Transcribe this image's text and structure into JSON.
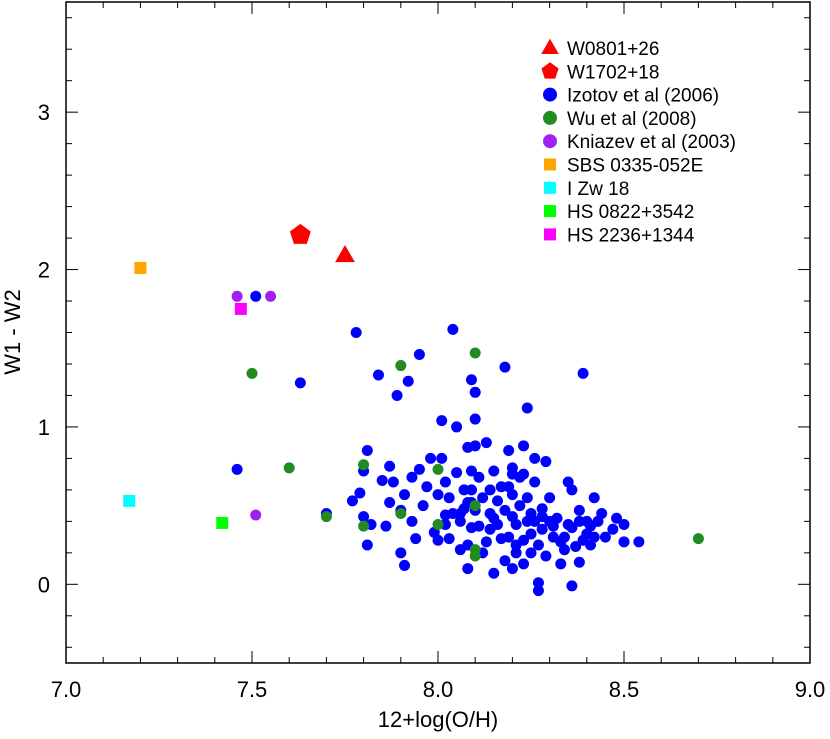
{
  "chart_data": {
    "type": "scatter",
    "title": "",
    "xlabel": "12+log(O/H)",
    "ylabel": "W1 - W2",
    "xlim": [
      7.0,
      9.0
    ],
    "ylim": [
      -0.5,
      3.7
    ],
    "xticks": [
      7.0,
      7.5,
      8.0,
      8.5,
      9.0
    ],
    "xtick_labels": [
      "7.0",
      "7.5",
      "8.0",
      "8.5",
      "9.0"
    ],
    "yticks": [
      0,
      1,
      2,
      3
    ],
    "ytick_labels": [
      "0",
      "1",
      "2",
      "3"
    ],
    "legend_position": "top-right",
    "series": [
      {
        "name": "W0801+26",
        "color": "#ff0000",
        "marker": "triangle",
        "points": [
          [
            7.75,
            2.09
          ]
        ]
      },
      {
        "name": "W1702+18",
        "color": "#ff0000",
        "marker": "pentagon",
        "points": [
          [
            7.63,
            2.22
          ]
        ]
      },
      {
        "name": "Izotov et al (2006)",
        "color": "#0000ff",
        "marker": "circle",
        "points": [
          [
            7.46,
            0.73
          ],
          [
            7.51,
            1.83
          ],
          [
            7.63,
            1.28
          ],
          [
            7.7,
            0.45
          ],
          [
            7.78,
            1.6
          ],
          [
            7.77,
            0.53
          ],
          [
            7.79,
            0.58
          ],
          [
            7.8,
            0.43
          ],
          [
            7.8,
            0.72
          ],
          [
            7.81,
            0.85
          ],
          [
            7.82,
            0.38
          ],
          [
            7.81,
            0.25
          ],
          [
            7.84,
            1.33
          ],
          [
            7.85,
            0.66
          ],
          [
            7.86,
            0.37
          ],
          [
            7.87,
            0.52
          ],
          [
            7.87,
            0.75
          ],
          [
            7.88,
            0.65
          ],
          [
            7.89,
            1.2
          ],
          [
            7.9,
            0.47
          ],
          [
            7.9,
            0.2
          ],
          [
            7.91,
            0.12
          ],
          [
            7.91,
            0.57
          ],
          [
            7.92,
            1.29
          ],
          [
            7.93,
            0.68
          ],
          [
            7.93,
            0.4
          ],
          [
            7.94,
            0.29
          ],
          [
            7.95,
            1.46
          ],
          [
            7.95,
            0.73
          ],
          [
            7.96,
            0.5
          ],
          [
            7.97,
            0.62
          ],
          [
            7.98,
            0.8
          ],
          [
            7.99,
            0.33
          ],
          [
            8.0,
            0.57
          ],
          [
            8.0,
            0.28
          ],
          [
            8.01,
            1.04
          ],
          [
            8.01,
            0.8
          ],
          [
            8.02,
            0.65
          ],
          [
            8.02,
            0.44
          ],
          [
            8.03,
            0.29
          ],
          [
            8.03,
            0.55
          ],
          [
            8.04,
            1.62
          ],
          [
            8.04,
            0.45
          ],
          [
            8.05,
            1.0
          ],
          [
            8.05,
            0.71
          ],
          [
            8.06,
            0.4
          ],
          [
            8.06,
            0.22
          ],
          [
            8.07,
            0.48
          ],
          [
            8.07,
            0.6
          ],
          [
            8.08,
            0.87
          ],
          [
            8.08,
            0.25
          ],
          [
            8.08,
            0.1
          ],
          [
            8.09,
            0.36
          ],
          [
            8.09,
            0.52
          ],
          [
            8.09,
            0.72
          ],
          [
            8.09,
            0.6
          ],
          [
            8.1,
            1.22
          ],
          [
            8.1,
            1.05
          ],
          [
            8.1,
            0.88
          ],
          [
            8.1,
            0.47
          ],
          [
            8.11,
            0.68
          ],
          [
            8.11,
            0.37
          ],
          [
            8.12,
            0.2
          ],
          [
            8.12,
            0.55
          ],
          [
            8.13,
            0.9
          ],
          [
            8.13,
            0.27
          ],
          [
            8.14,
            0.45
          ],
          [
            8.14,
            0.6
          ],
          [
            8.15,
            0.07
          ],
          [
            8.15,
            0.72
          ],
          [
            8.16,
            0.38
          ],
          [
            8.16,
            0.53
          ],
          [
            8.17,
            0.29
          ],
          [
            8.17,
            0.62
          ],
          [
            8.18,
            0.47
          ],
          [
            8.18,
            0.15
          ],
          [
            8.19,
            0.3
          ],
          [
            8.19,
            0.85
          ],
          [
            8.2,
            0.57
          ],
          [
            8.2,
            0.43
          ],
          [
            8.2,
            0.74
          ],
          [
            8.2,
            0.1
          ],
          [
            8.21,
            0.38
          ],
          [
            8.21,
            0.2
          ],
          [
            8.22,
            0.5
          ],
          [
            8.22,
            0.68
          ],
          [
            8.23,
            0.28
          ],
          [
            8.23,
            0.88
          ],
          [
            8.23,
            0.13
          ],
          [
            8.24,
            1.12
          ],
          [
            8.24,
            0.4
          ],
          [
            8.24,
            0.55
          ],
          [
            8.25,
            0.45
          ],
          [
            8.25,
            0.32
          ],
          [
            8.25,
            0.2
          ],
          [
            8.26,
            0.8
          ],
          [
            8.26,
            0.65
          ],
          [
            8.26,
            0.4
          ],
          [
            8.27,
            0.01
          ],
          [
            8.27,
            0.25
          ],
          [
            8.27,
            -0.04
          ],
          [
            8.28,
            0.48
          ],
          [
            8.28,
            0.35
          ],
          [
            8.29,
            0.78
          ],
          [
            8.29,
            0.18
          ],
          [
            8.3,
            0.4
          ],
          [
            8.3,
            0.55
          ],
          [
            8.31,
            0.3
          ],
          [
            8.32,
            0.42
          ],
          [
            8.33,
            0.13
          ],
          [
            8.33,
            0.27
          ],
          [
            8.34,
            0.22
          ],
          [
            8.35,
            0.65
          ],
          [
            8.35,
            0.38
          ],
          [
            8.36,
            -0.01
          ],
          [
            8.36,
            0.6
          ],
          [
            8.37,
            0.24
          ],
          [
            8.38,
            0.4
          ],
          [
            8.38,
            0.47
          ],
          [
            8.38,
            0.14
          ],
          [
            8.39,
            0.28
          ],
          [
            8.39,
            1.34
          ],
          [
            8.4,
            0.32
          ],
          [
            8.4,
            0.4
          ],
          [
            8.41,
            0.25
          ],
          [
            8.42,
            0.55
          ],
          [
            8.42,
            0.3
          ],
          [
            8.43,
            0.4
          ],
          [
            8.44,
            0.45
          ],
          [
            8.47,
            0.35
          ],
          [
            8.48,
            0.42
          ],
          [
            8.5,
            0.27
          ],
          [
            8.5,
            0.38
          ],
          [
            8.54,
            0.27
          ],
          [
            8.41,
            0.37
          ],
          [
            8.45,
            0.3
          ],
          [
            8.18,
            1.38
          ],
          [
            8.23,
            0.7
          ],
          [
            8.14,
            0.35
          ],
          [
            8.06,
            0.45
          ],
          [
            8.21,
            0.25
          ],
          [
            8.25,
            0.42
          ],
          [
            8.28,
            0.43
          ],
          [
            8.31,
            0.37
          ],
          [
            8.2,
            0.7
          ],
          [
            8.19,
            0.62
          ],
          [
            8.15,
            0.42
          ],
          [
            8.08,
            0.52
          ],
          [
            8.02,
            0.38
          ],
          [
            8.09,
            1.3
          ],
          [
            8.34,
            0.3
          ],
          [
            8.36,
            0.36
          ]
        ]
      },
      {
        "name": "Wu et al (2008)",
        "color": "#228b22",
        "marker": "circle",
        "points": [
          [
            7.5,
            1.34
          ],
          [
            7.6,
            0.74
          ],
          [
            7.7,
            0.43
          ],
          [
            7.8,
            0.76
          ],
          [
            7.8,
            0.37
          ],
          [
            7.9,
            0.45
          ],
          [
            7.9,
            1.39
          ],
          [
            8.0,
            0.38
          ],
          [
            8.0,
            0.73
          ],
          [
            8.1,
            1.47
          ],
          [
            8.1,
            0.5
          ],
          [
            8.1,
            0.22
          ],
          [
            8.1,
            0.18
          ],
          [
            8.7,
            0.29
          ]
        ]
      },
      {
        "name": "Kniazev et al (2003)",
        "color": "#a020f0",
        "marker": "circle",
        "points": [
          [
            7.46,
            1.83
          ],
          [
            7.55,
            1.83
          ],
          [
            7.51,
            0.44
          ]
        ]
      },
      {
        "name": "SBS 0335-052E",
        "color": "#ffa500",
        "marker": "square",
        "points": [
          [
            7.2,
            2.01
          ]
        ]
      },
      {
        "name": "I Zw 18",
        "color": "#00ffff",
        "marker": "square",
        "points": [
          [
            7.17,
            0.53
          ]
        ]
      },
      {
        "name": "HS 0822+3542",
        "color": "#00ff00",
        "marker": "square",
        "points": [
          [
            7.42,
            0.39
          ]
        ]
      },
      {
        "name": "HS 2236+1344",
        "color": "#ff00ff",
        "marker": "square",
        "points": [
          [
            7.47,
            1.75
          ]
        ]
      }
    ]
  }
}
